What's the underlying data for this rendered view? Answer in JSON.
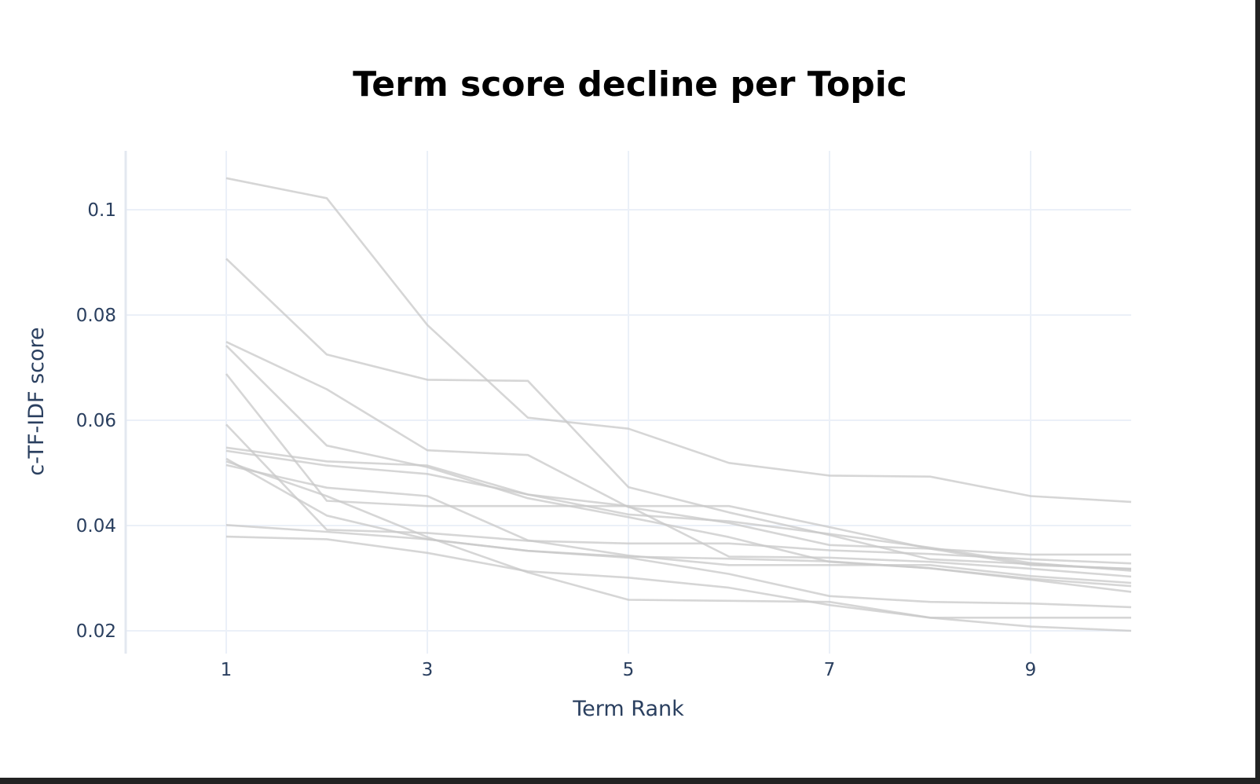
{
  "chart_data": {
    "type": "line",
    "title": "Term score decline per Topic",
    "xlabel": "Term Rank",
    "ylabel": "c-TF-IDF score",
    "xlim": [
      0,
      10
    ],
    "ylim": [
      0.0155,
      0.111
    ],
    "x_ticks": [
      1,
      3,
      5,
      7,
      9
    ],
    "y_ticks": [
      0.02,
      0.04,
      0.06,
      0.08,
      0.1
    ],
    "x_tick_labels": [
      "1",
      "3",
      "5",
      "7",
      "9"
    ],
    "y_tick_labels": [
      "0.02",
      "0.04",
      "0.06",
      "0.08",
      "0.1"
    ],
    "grid": true,
    "legend": "none",
    "line_color": "#c8c8c8",
    "x": [
      1,
      2,
      3,
      4,
      5,
      6,
      7,
      8,
      9,
      10
    ],
    "series": [
      {
        "values": [
          0.106,
          0.1022,
          0.0781,
          0.0605,
          0.0584,
          0.0519,
          0.0495,
          0.0493,
          0.0456,
          0.0445
        ]
      },
      {
        "values": [
          0.0907,
          0.0725,
          0.0677,
          0.0675,
          0.0473,
          0.0425,
          0.0382,
          0.0336,
          0.0327,
          0.0317
        ]
      },
      {
        "values": [
          0.0749,
          0.0659,
          0.0543,
          0.0534,
          0.0435,
          0.0405,
          0.0363,
          0.0356,
          0.0345,
          0.0345
        ]
      },
      {
        "values": [
          0.0742,
          0.0552,
          0.0511,
          0.0452,
          0.0416,
          0.0378,
          0.0331,
          0.0319,
          0.0297,
          0.0274
        ]
      },
      {
        "values": [
          0.0688,
          0.0447,
          0.0437,
          0.0437,
          0.0437,
          0.0437,
          0.0397,
          0.0356,
          0.0325,
          0.0318
        ]
      },
      {
        "values": [
          0.0592,
          0.0392,
          0.0386,
          0.0371,
          0.0366,
          0.0366,
          0.0353,
          0.0346,
          0.0336,
          0.0328
        ]
      },
      {
        "values": [
          0.0548,
          0.0522,
          0.0514,
          0.0459,
          0.0437,
          0.0341,
          0.0339,
          0.0331,
          0.0318,
          0.0303
        ]
      },
      {
        "values": [
          0.0542,
          0.0514,
          0.0498,
          0.0459,
          0.0421,
          0.0408,
          0.0384,
          0.0358,
          0.0329,
          0.0314
        ]
      },
      {
        "values": [
          0.0527,
          0.0419,
          0.0374,
          0.0352,
          0.0339,
          0.0308,
          0.0266,
          0.0255,
          0.0252,
          0.0245
        ]
      },
      {
        "values": [
          0.0515,
          0.0472,
          0.0456,
          0.0372,
          0.0343,
          0.0325,
          0.0325,
          0.0325,
          0.0304,
          0.0291
        ]
      },
      {
        "values": [
          0.0401,
          0.0388,
          0.0374,
          0.0352,
          0.0341,
          0.0337,
          0.0332,
          0.0319,
          0.0299,
          0.0285
        ]
      },
      {
        "values": [
          0.0379,
          0.0374,
          0.0348,
          0.0313,
          0.0301,
          0.0282,
          0.0249,
          0.0225,
          0.0208,
          0.02
        ]
      },
      {
        "values": [
          0.0522,
          0.0456,
          0.0378,
          0.0311,
          0.0259,
          0.0257,
          0.0255,
          0.0225,
          0.0225,
          0.0225
        ]
      }
    ]
  }
}
